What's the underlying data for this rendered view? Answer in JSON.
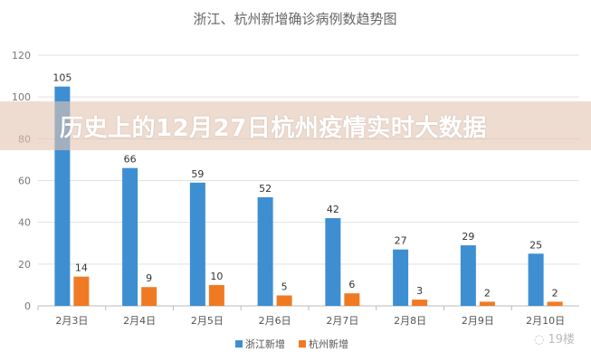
{
  "chart_data": {
    "type": "bar",
    "title": "浙江、杭州新增确诊病例数趋势图",
    "categories": [
      "2月3日",
      "2月4日",
      "2月5日",
      "2月6日",
      "2月7日",
      "2月8日",
      "2月9日",
      "2月10日"
    ],
    "series": [
      {
        "name": "浙江新增",
        "color": "#3d8fd1",
        "values": [
          105,
          66,
          59,
          52,
          42,
          27,
          29,
          25
        ]
      },
      {
        "name": "杭州新增",
        "color": "#f07a24",
        "values": [
          14,
          9,
          10,
          5,
          6,
          3,
          2,
          2
        ]
      }
    ],
    "ylim": [
      0,
      120
    ],
    "yticks": [
      0,
      20,
      40,
      60,
      80,
      100,
      120
    ],
    "grid": true,
    "legend": "bottom"
  },
  "overlay": {
    "headline": "历史上的12月27日杭州疫情实时大数据"
  },
  "watermark": {
    "icon": "wechat-icon",
    "text": "19楼"
  }
}
